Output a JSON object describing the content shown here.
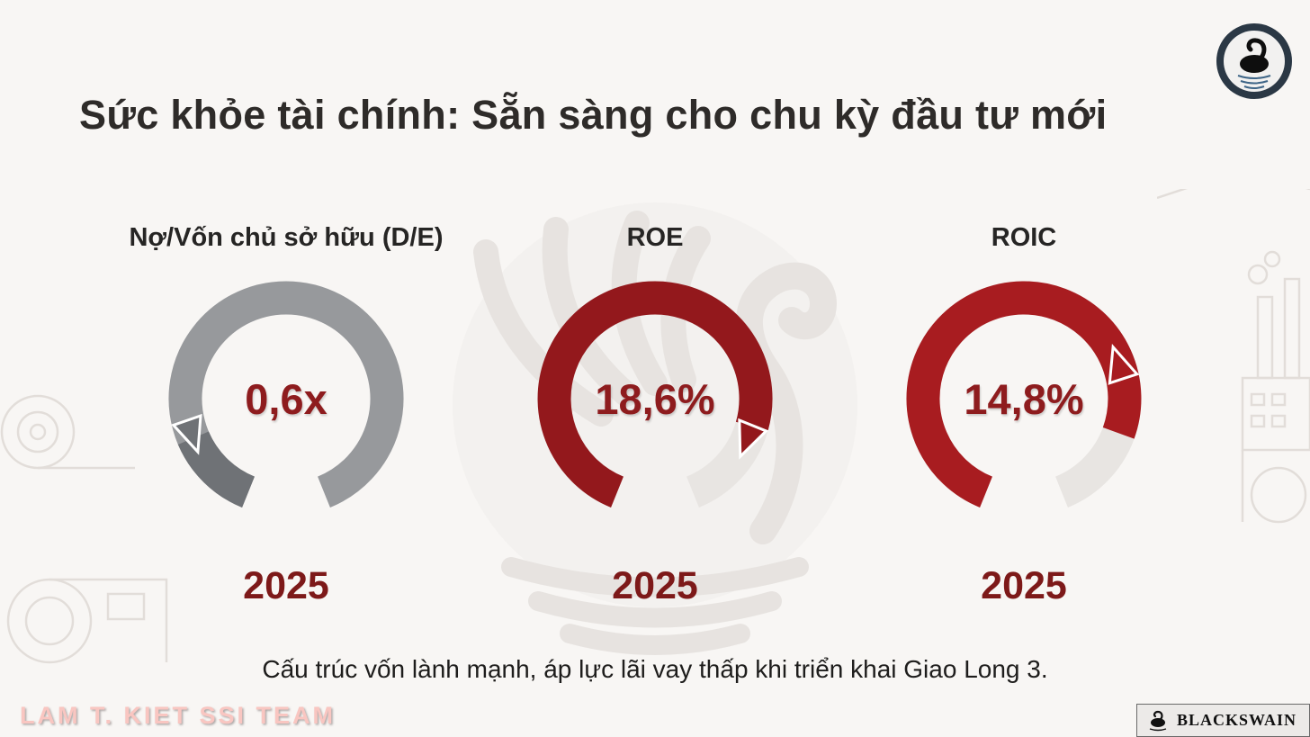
{
  "slide": {
    "title": "Sức khỏe tài chính: Sẵn sàng cho chu kỳ đầu tư mới",
    "caption": "Cấu trúc vốn lành mạnh, áp lực lãi vay thấp khi triển khai Giao Long 3.",
    "footer_left": "LAM T. KIET SSI TEAM",
    "brand": "BLACKSWAIN"
  },
  "chart_data": {
    "type": "gauge",
    "title": "Sức khỏe tài chính: Sẵn sàng cho chu kỳ đầu tư mới",
    "legend": "none",
    "gauges": [
      {
        "label": "Nợ/Vốn chủ sở hữu (D/E)",
        "value_display": "0,6x",
        "value": 0.6,
        "unit": "x",
        "period": "2025",
        "color": "#6f7276",
        "track_color": "#97999c",
        "value_color": "#8e1c1e",
        "arc_start": 202,
        "arc_end": 158,
        "fill_end": 247,
        "pointer_angle": 251,
        "pointer_dir": -1
      },
      {
        "label": "ROE",
        "value_display": "18,6%",
        "value": 18.6,
        "unit": "%",
        "period": "2025",
        "color": "#93181c",
        "track_color": "#e8e5e2",
        "value_color": "#8e1c1e",
        "arc_start": 202,
        "arc_end": 158,
        "fill_end": 106,
        "pointer_angle": 112,
        "pointer_dir": 1
      },
      {
        "label": "ROIC",
        "value_display": "14,8%",
        "value": 14.8,
        "unit": "%",
        "period": "2025",
        "color": "#a81c20",
        "track_color": "#e8e5e2",
        "value_color": "#8e1c1e",
        "arc_start": 202,
        "arc_end": 158,
        "fill_end": 110,
        "pointer_angle": 72,
        "pointer_dir": -1
      }
    ]
  }
}
